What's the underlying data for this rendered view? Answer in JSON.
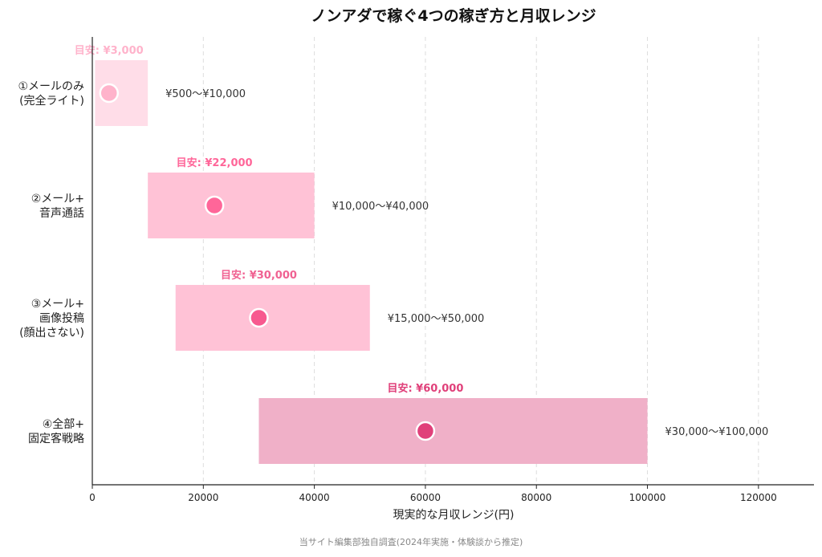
{
  "chart_data": {
    "type": "bar",
    "title": "ノンアダで稼ぐ4つの稼ぎ方と月収レンジ",
    "xlabel": "現実的な月収レンジ(円)",
    "ylabel": "",
    "xlim": [
      0,
      130000
    ],
    "xticks": [
      0,
      20000,
      40000,
      60000,
      80000,
      100000,
      120000
    ],
    "xtick_labels": [
      "0",
      "20000",
      "40000",
      "60000",
      "80000",
      "100000",
      "120000"
    ],
    "grid": "vertical dashed",
    "categories": [
      {
        "lines": [
          "①メールのみ",
          "(完全ライト)"
        ],
        "min": 500,
        "max": 10000,
        "target": 3000,
        "range_label": "¥500〜¥10,000",
        "target_label": "目安: ¥3,000",
        "bar_color": "#ffdde8",
        "dot_color": "#ffb3cb",
        "label_color": "#ffb3cb"
      },
      {
        "lines": [
          "②メール+",
          "音声通話"
        ],
        "min": 10000,
        "max": 40000,
        "target": 22000,
        "range_label": "¥10,000〜¥40,000",
        "target_label": "目安: ¥22,000",
        "bar_color": "#ffc2d6",
        "dot_color": "#ff6699",
        "label_color": "#ff6699"
      },
      {
        "lines": [
          "③メール+",
          "画像投稿",
          "(顔出さない)"
        ],
        "min": 15000,
        "max": 50000,
        "target": 30000,
        "range_label": "¥15,000〜¥50,000",
        "target_label": "目安: ¥30,000",
        "bar_color": "#ffc2d6",
        "dot_color": "#f7598f",
        "label_color": "#f06292"
      },
      {
        "lines": [
          "④全部+",
          "固定客戦略"
        ],
        "min": 30000,
        "max": 100000,
        "target": 60000,
        "range_label": "¥30,000〜¥100,000",
        "target_label": "目安: ¥60,000",
        "bar_color": "#f0b0c8",
        "dot_color": "#e0407a",
        "label_color": "#e0407a"
      }
    ]
  },
  "footer": {
    "source": "当サイト編集部独自調査(2024年実施・体験談から推定)"
  }
}
